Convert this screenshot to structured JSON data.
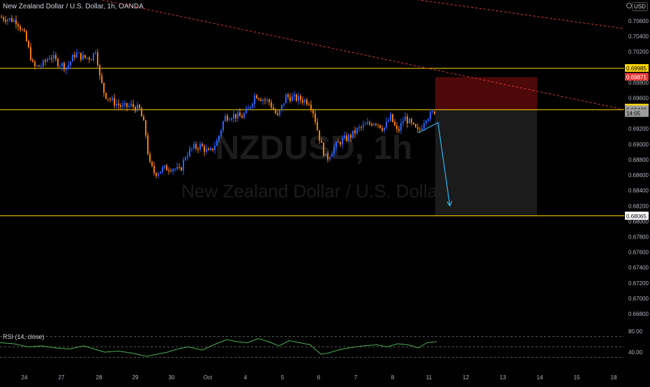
{
  "header": {
    "title": "New Zealand Dollar / U.S. Dollar, 1h, OANDA"
  },
  "watermark": {
    "symbol": "NZDUSD, 1h",
    "name": "New Zealand Dollar / U.S. Dollar"
  },
  "currency": "USD",
  "indicator": {
    "label": "RSI (14, close)"
  },
  "colors": {
    "background": "#000000",
    "candle_up": "#2962ff",
    "candle_down": "#f57c00",
    "horizontal_line": "#ffd600",
    "trend_line": "#e53935",
    "projection_arrow": "#29b6f6",
    "rsi_line": "#4caf50",
    "stop_zone": "#5a0a0a",
    "target_zone": "#1e1e1e"
  },
  "chart_data": [
    {
      "type": "candlestick",
      "symbol": "NZDUSD",
      "interval": "1h",
      "ylim": [
        0.662,
        0.708
      ],
      "y_ticks": [
        "0.70600",
        "0.70400",
        "0.70200",
        "0.70000",
        "0.69800",
        "0.69600",
        "0.69400",
        "0.69200",
        "0.69000",
        "0.68800",
        "0.68600",
        "0.68400",
        "0.68200",
        "0.68000",
        "0.67800",
        "0.67600",
        "0.67400",
        "0.67200",
        "0.67000",
        "0.66800"
      ],
      "x_ticks": [
        "24",
        "27",
        "28",
        "29",
        "30",
        "Oct",
        "4",
        "5",
        "6",
        "7",
        "8",
        "11",
        "12",
        "13",
        "14",
        "15",
        "18"
      ],
      "price_path": [
        [
          0,
          0.7065
        ],
        [
          24,
          0.706
        ],
        [
          36,
          0.704
        ],
        [
          48,
          0.7
        ],
        [
          60,
          0.7002
        ],
        [
          72,
          0.7015
        ],
        [
          84,
          0.7005
        ],
        [
          96,
          0.7
        ],
        [
          108,
          0.7018
        ],
        [
          120,
          0.7012
        ],
        [
          132,
          0.7013
        ],
        [
          138,
          0.7025
        ],
        [
          142,
          0.699
        ],
        [
          150,
          0.6965
        ],
        [
          162,
          0.6955
        ],
        [
          176,
          0.6948
        ],
        [
          188,
          0.695
        ],
        [
          200,
          0.6945
        ],
        [
          208,
          0.692
        ],
        [
          214,
          0.6875
        ],
        [
          222,
          0.6862
        ],
        [
          234,
          0.6868
        ],
        [
          246,
          0.687
        ],
        [
          258,
          0.6865
        ],
        [
          266,
          0.6885
        ],
        [
          276,
          0.6895
        ],
        [
          288,
          0.6898
        ],
        [
          300,
          0.6888
        ],
        [
          312,
          0.6905
        ],
        [
          322,
          0.6935
        ],
        [
          334,
          0.6938
        ],
        [
          346,
          0.6935
        ],
        [
          356,
          0.6945
        ],
        [
          366,
          0.6965
        ],
        [
          374,
          0.696
        ],
        [
          386,
          0.6955
        ],
        [
          398,
          0.6935
        ],
        [
          410,
          0.6962
        ],
        [
          420,
          0.696
        ],
        [
          432,
          0.6958
        ],
        [
          444,
          0.6955
        ],
        [
          450,
          0.694
        ],
        [
          456,
          0.6915
        ],
        [
          462,
          0.6895
        ],
        [
          468,
          0.688
        ],
        [
          478,
          0.6895
        ],
        [
          490,
          0.6905
        ],
        [
          502,
          0.691
        ],
        [
          514,
          0.692
        ],
        [
          526,
          0.6925
        ],
        [
          538,
          0.693
        ],
        [
          550,
          0.692
        ],
        [
          560,
          0.6935
        ],
        [
          570,
          0.6915
        ],
        [
          580,
          0.6935
        ],
        [
          590,
          0.6925
        ],
        [
          600,
          0.6915
        ],
        [
          610,
          0.6935
        ],
        [
          618,
          0.6938
        ],
        [
          624,
          0.6944
        ]
      ],
      "horizontal_levels": [
        0.69985,
        0.69448,
        0.68071
      ],
      "trend_lines": [
        {
          "from": [
            0,
            0.7115
          ],
          "to": [
            895,
            0.6945
          ]
        },
        {
          "from": [
            420,
            0.711
          ],
          "to": [
            895,
            0.705
          ]
        }
      ],
      "projection": {
        "from": [
          624,
          0.693
        ],
        "to": [
          645,
          0.682
        ]
      },
      "position_tool": {
        "entry": 0.69448,
        "stop": 0.69871,
        "target": 0.68065,
        "x_start": 624,
        "x_end": 770
      },
      "price_labels": [
        {
          "text": "0.69985",
          "value": 0.69985,
          "bg": "#ffd600",
          "fg": "#000000"
        },
        {
          "text": "0.69871",
          "value": 0.69871,
          "bg": "#e53935",
          "fg": "#ffffff"
        },
        {
          "text": "0.69471",
          "value": 0.69471,
          "bg": "#f57c00",
          "fg": "#000000"
        },
        {
          "text": "0.69470",
          "value": 0.6947,
          "bg": "#ffd600",
          "fg": "#000000"
        },
        {
          "text": "0.69448",
          "value": 0.69448,
          "bg": "#9e9e9e",
          "fg": "#000000"
        },
        {
          "text": "14:05",
          "value": 0.694,
          "bg": "#9e9e9e",
          "fg": "#000000"
        },
        {
          "text": "0.68071",
          "value": 0.68071,
          "bg": "#ffffff",
          "fg": "#000000"
        },
        {
          "text": "0.68065",
          "value": 0.68065,
          "bg": "#ffffff",
          "fg": "#000000"
        }
      ]
    },
    {
      "type": "line",
      "name": "RSI (14, close)",
      "ylim": [
        30,
        80
      ],
      "y_ticks": [
        "80.00",
        "40.00"
      ],
      "bands": [
        70,
        50,
        30
      ],
      "path": [
        [
          0,
          58
        ],
        [
          20,
          56
        ],
        [
          40,
          50
        ],
        [
          60,
          52
        ],
        [
          80,
          48
        ],
        [
          100,
          46
        ],
        [
          120,
          52
        ],
        [
          140,
          44
        ],
        [
          150,
          40
        ],
        [
          170,
          42
        ],
        [
          190,
          38
        ],
        [
          210,
          32
        ],
        [
          225,
          36
        ],
        [
          240,
          40
        ],
        [
          255,
          46
        ],
        [
          270,
          50
        ],
        [
          290,
          44
        ],
        [
          310,
          56
        ],
        [
          325,
          64
        ],
        [
          340,
          60
        ],
        [
          355,
          58
        ],
        [
          370,
          66
        ],
        [
          385,
          60
        ],
        [
          400,
          52
        ],
        [
          415,
          62
        ],
        [
          430,
          58
        ],
        [
          445,
          54
        ],
        [
          460,
          36
        ],
        [
          470,
          38
        ],
        [
          485,
          44
        ],
        [
          500,
          48
        ],
        [
          520,
          52
        ],
        [
          540,
          54
        ],
        [
          555,
          50
        ],
        [
          570,
          56
        ],
        [
          585,
          54
        ],
        [
          600,
          48
        ],
        [
          612,
          58
        ],
        [
          626,
          60
        ]
      ]
    }
  ]
}
